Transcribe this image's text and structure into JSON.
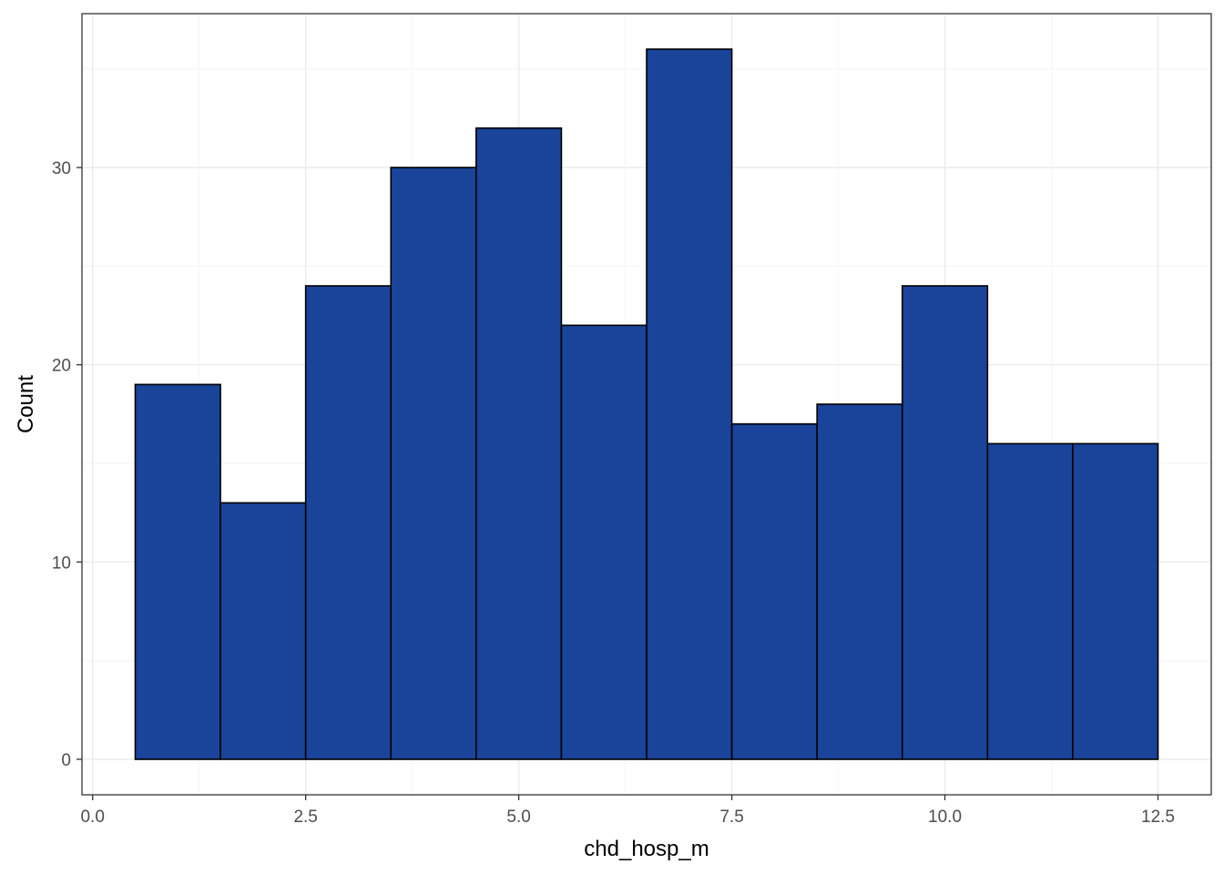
{
  "chart_data": {
    "type": "bar",
    "xlabel": "chd_hosp_m",
    "ylabel": "Count",
    "bins": [
      {
        "x0": 0.5,
        "x1": 1.5,
        "count": 19
      },
      {
        "x0": 1.5,
        "x1": 2.5,
        "count": 13
      },
      {
        "x0": 2.5,
        "x1": 3.5,
        "count": 24
      },
      {
        "x0": 3.5,
        "x1": 4.5,
        "count": 30
      },
      {
        "x0": 4.5,
        "x1": 5.5,
        "count": 32
      },
      {
        "x0": 5.5,
        "x1": 6.5,
        "count": 22
      },
      {
        "x0": 6.5,
        "x1": 7.5,
        "count": 36
      },
      {
        "x0": 7.5,
        "x1": 8.5,
        "count": 17
      },
      {
        "x0": 8.5,
        "x1": 9.5,
        "count": 18
      },
      {
        "x0": 9.5,
        "x1": 10.5,
        "count": 24
      },
      {
        "x0": 10.5,
        "x1": 11.5,
        "count": 16
      },
      {
        "x0": 11.5,
        "x1": 12.5,
        "count": 16
      }
    ],
    "x_ticks": [
      0.0,
      2.5,
      5.0,
      7.5,
      10.0,
      12.5
    ],
    "x_tick_labels": [
      "0.0",
      "2.5",
      "5.0",
      "7.5",
      "10.0",
      "12.5"
    ],
    "y_ticks": [
      0,
      10,
      20,
      30
    ],
    "y_tick_labels": [
      "0",
      "10",
      "20",
      "30"
    ],
    "xlim": [
      -0.125,
      13.125
    ],
    "ylim": [
      -1.8,
      37.8
    ],
    "grid": true,
    "colors": {
      "bar_fill": "#19449A",
      "bar_stroke": "#000000",
      "grid_major": "#EBEBEB",
      "grid_minor": "#F5F5F5",
      "panel_border": "#333333"
    }
  }
}
